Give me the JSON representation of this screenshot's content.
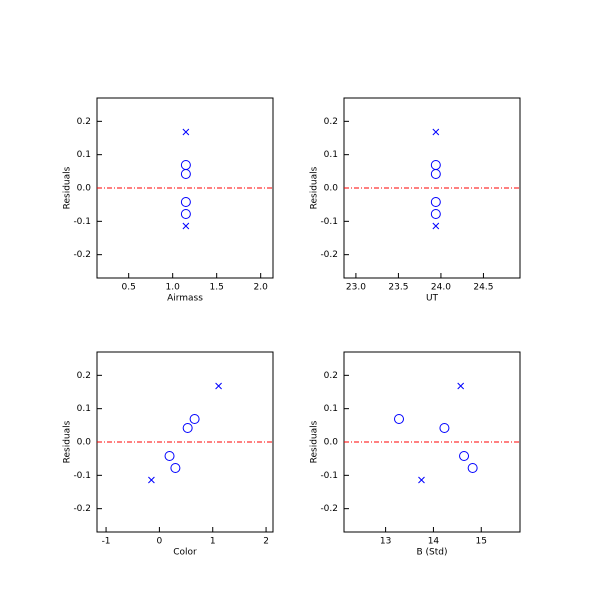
{
  "chart_data": [
    {
      "type": "scatter",
      "x_label": "Airmass",
      "y_label": "Residuals",
      "xlim": [
        0.14,
        2.14
      ],
      "ylim": [
        -0.27,
        0.27
      ],
      "xticks": [
        0.5,
        {
          "value": 1,
          "label": "1.0"
        },
        1.5,
        {
          "value": 2,
          "label": "2.0"
        }
      ],
      "yticks": [
        -0.2,
        -0.1,
        {
          "value": 0,
          "label": "0.0"
        },
        0.1,
        0.2
      ],
      "hline": 0,
      "hline_color": "#ff0000",
      "series": [
        {
          "marker": "circle",
          "color": "#0000ff",
          "x": [
            1.15,
            1.15,
            1.15,
            1.15
          ],
          "values": [
            0.069,
            0.042,
            -0.042,
            -0.078
          ]
        },
        {
          "marker": "cross",
          "color": "#0000ff",
          "x": [
            1.15,
            1.15
          ],
          "values": [
            0.168,
            -0.114
          ]
        }
      ]
    },
    {
      "type": "scatter",
      "x_label": "UT",
      "y_label": "Residuals",
      "xlim": [
        22.86,
        24.93
      ],
      "ylim": [
        -0.27,
        0.27
      ],
      "xticks": [
        {
          "value": 23,
          "label": "23.0"
        },
        23.5,
        {
          "value": 24,
          "label": "24.0"
        },
        24.5
      ],
      "yticks": [
        -0.2,
        -0.1,
        {
          "value": 0,
          "label": "0.0"
        },
        0.1,
        0.2
      ],
      "hline": 0,
      "hline_color": "#ff0000",
      "series": [
        {
          "marker": "circle",
          "color": "#0000ff",
          "x": [
            23.94,
            23.94,
            23.94,
            23.94
          ],
          "values": [
            0.069,
            0.042,
            -0.042,
            -0.078
          ]
        },
        {
          "marker": "cross",
          "color": "#0000ff",
          "x": [
            23.94,
            23.94
          ],
          "values": [
            0.168,
            -0.114
          ]
        }
      ]
    },
    {
      "type": "scatter",
      "x_label": "Color",
      "y_label": "Residuals",
      "xlim": [
        -1.17,
        2.13
      ],
      "ylim": [
        -0.27,
        0.27
      ],
      "xticks": [
        -1,
        0,
        1,
        2
      ],
      "yticks": [
        -0.2,
        -0.1,
        {
          "value": 0,
          "label": "0.0"
        },
        0.1,
        0.2
      ],
      "hline": 0,
      "hline_color": "#ff0000",
      "series": [
        {
          "marker": "circle",
          "color": "#0000ff",
          "x": [
            0.19,
            0.3,
            0.53,
            0.66
          ],
          "values": [
            -0.042,
            -0.078,
            0.042,
            0.069
          ]
        },
        {
          "marker": "cross",
          "color": "#0000ff",
          "x": [
            -0.15,
            1.11
          ],
          "values": [
            -0.114,
            0.168
          ]
        }
      ]
    },
    {
      "type": "scatter",
      "x_label": "B (Std)",
      "y_label": "Residuals",
      "xlim": [
        12.13,
        15.81
      ],
      "ylim": [
        -0.27,
        0.27
      ],
      "xticks": [
        13,
        14,
        15
      ],
      "yticks": [
        -0.2,
        -0.1,
        {
          "value": 0,
          "label": "0.0"
        },
        0.1,
        0.2
      ],
      "hline": 0,
      "hline_color": "#ff0000",
      "series": [
        {
          "marker": "circle",
          "color": "#0000ff",
          "x": [
            13.28,
            14.23,
            14.64,
            14.82
          ],
          "values": [
            0.069,
            0.042,
            -0.042,
            -0.078
          ]
        },
        {
          "marker": "cross",
          "color": "#0000ff",
          "x": [
            13.75,
            14.57
          ],
          "values": [
            -0.114,
            0.168
          ]
        }
      ]
    }
  ]
}
